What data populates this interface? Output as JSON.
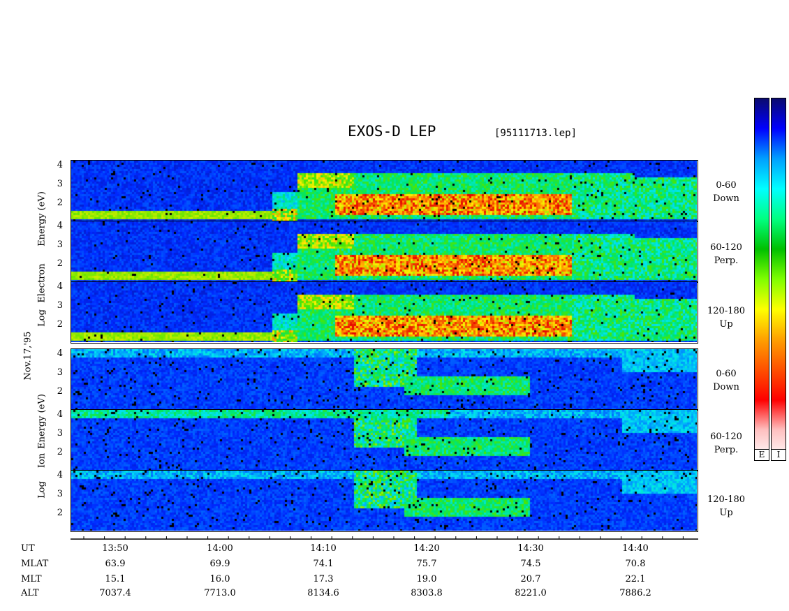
{
  "title": "EXOS-D LEP",
  "file_label": "[95111713.lep]",
  "date_label": "Nov.17,'95",
  "electron": {
    "axis_label_parts": [
      "Log",
      "Electron",
      "Energy",
      "(eV)"
    ],
    "panels": [
      {
        "label_a": "0-60",
        "label_b": "Down"
      },
      {
        "label_a": "60-120",
        "label_b": "Perp."
      },
      {
        "label_a": "120-180",
        "label_b": "Up"
      }
    ]
  },
  "ion": {
    "axis_label_parts": [
      "Log",
      "Ion",
      "Energy",
      "(eV)"
    ],
    "panels": [
      {
        "label_a": "0-60",
        "label_b": "Down"
      },
      {
        "label_a": "60-120",
        "label_b": "Perp."
      },
      {
        "label_a": "120-180",
        "label_b": "Up"
      }
    ]
  },
  "colorbar": {
    "labels": [
      "E",
      "I"
    ],
    "colors": [
      "#0a0a6e",
      "#0000ff",
      "#00a0ff",
      "#00ffff",
      "#00ff80",
      "#00c000",
      "#80ff00",
      "#ffff00",
      "#ffa000",
      "#ff5000",
      "#ff0000",
      "#ffc0c0",
      "#ffffff"
    ]
  },
  "chart_data": {
    "type": "heatmap",
    "y_ticks": [
      "4",
      "3",
      "2"
    ],
    "ylim": [
      1,
      4
    ],
    "x_ticks": [
      "13:50",
      "14:00",
      "14:10",
      "14:20",
      "14:30",
      "14:40"
    ],
    "rows": [
      {
        "name": "UT",
        "values": [
          "13:50",
          "14:00",
          "14:10",
          "14:20",
          "14:30",
          "14:40"
        ]
      },
      {
        "name": "MLAT",
        "values": [
          "63.9",
          "69.9",
          "74.1",
          "75.7",
          "74.5",
          "70.8"
        ]
      },
      {
        "name": "MLT",
        "values": [
          "15.1",
          "16.0",
          "17.3",
          "19.0",
          "20.7",
          "22.1"
        ]
      },
      {
        "name": "ALT",
        "values": [
          "7037.4",
          "7713.0",
          "8134.6",
          "8303.8",
          "8221.0",
          "7886.2"
        ]
      }
    ]
  }
}
